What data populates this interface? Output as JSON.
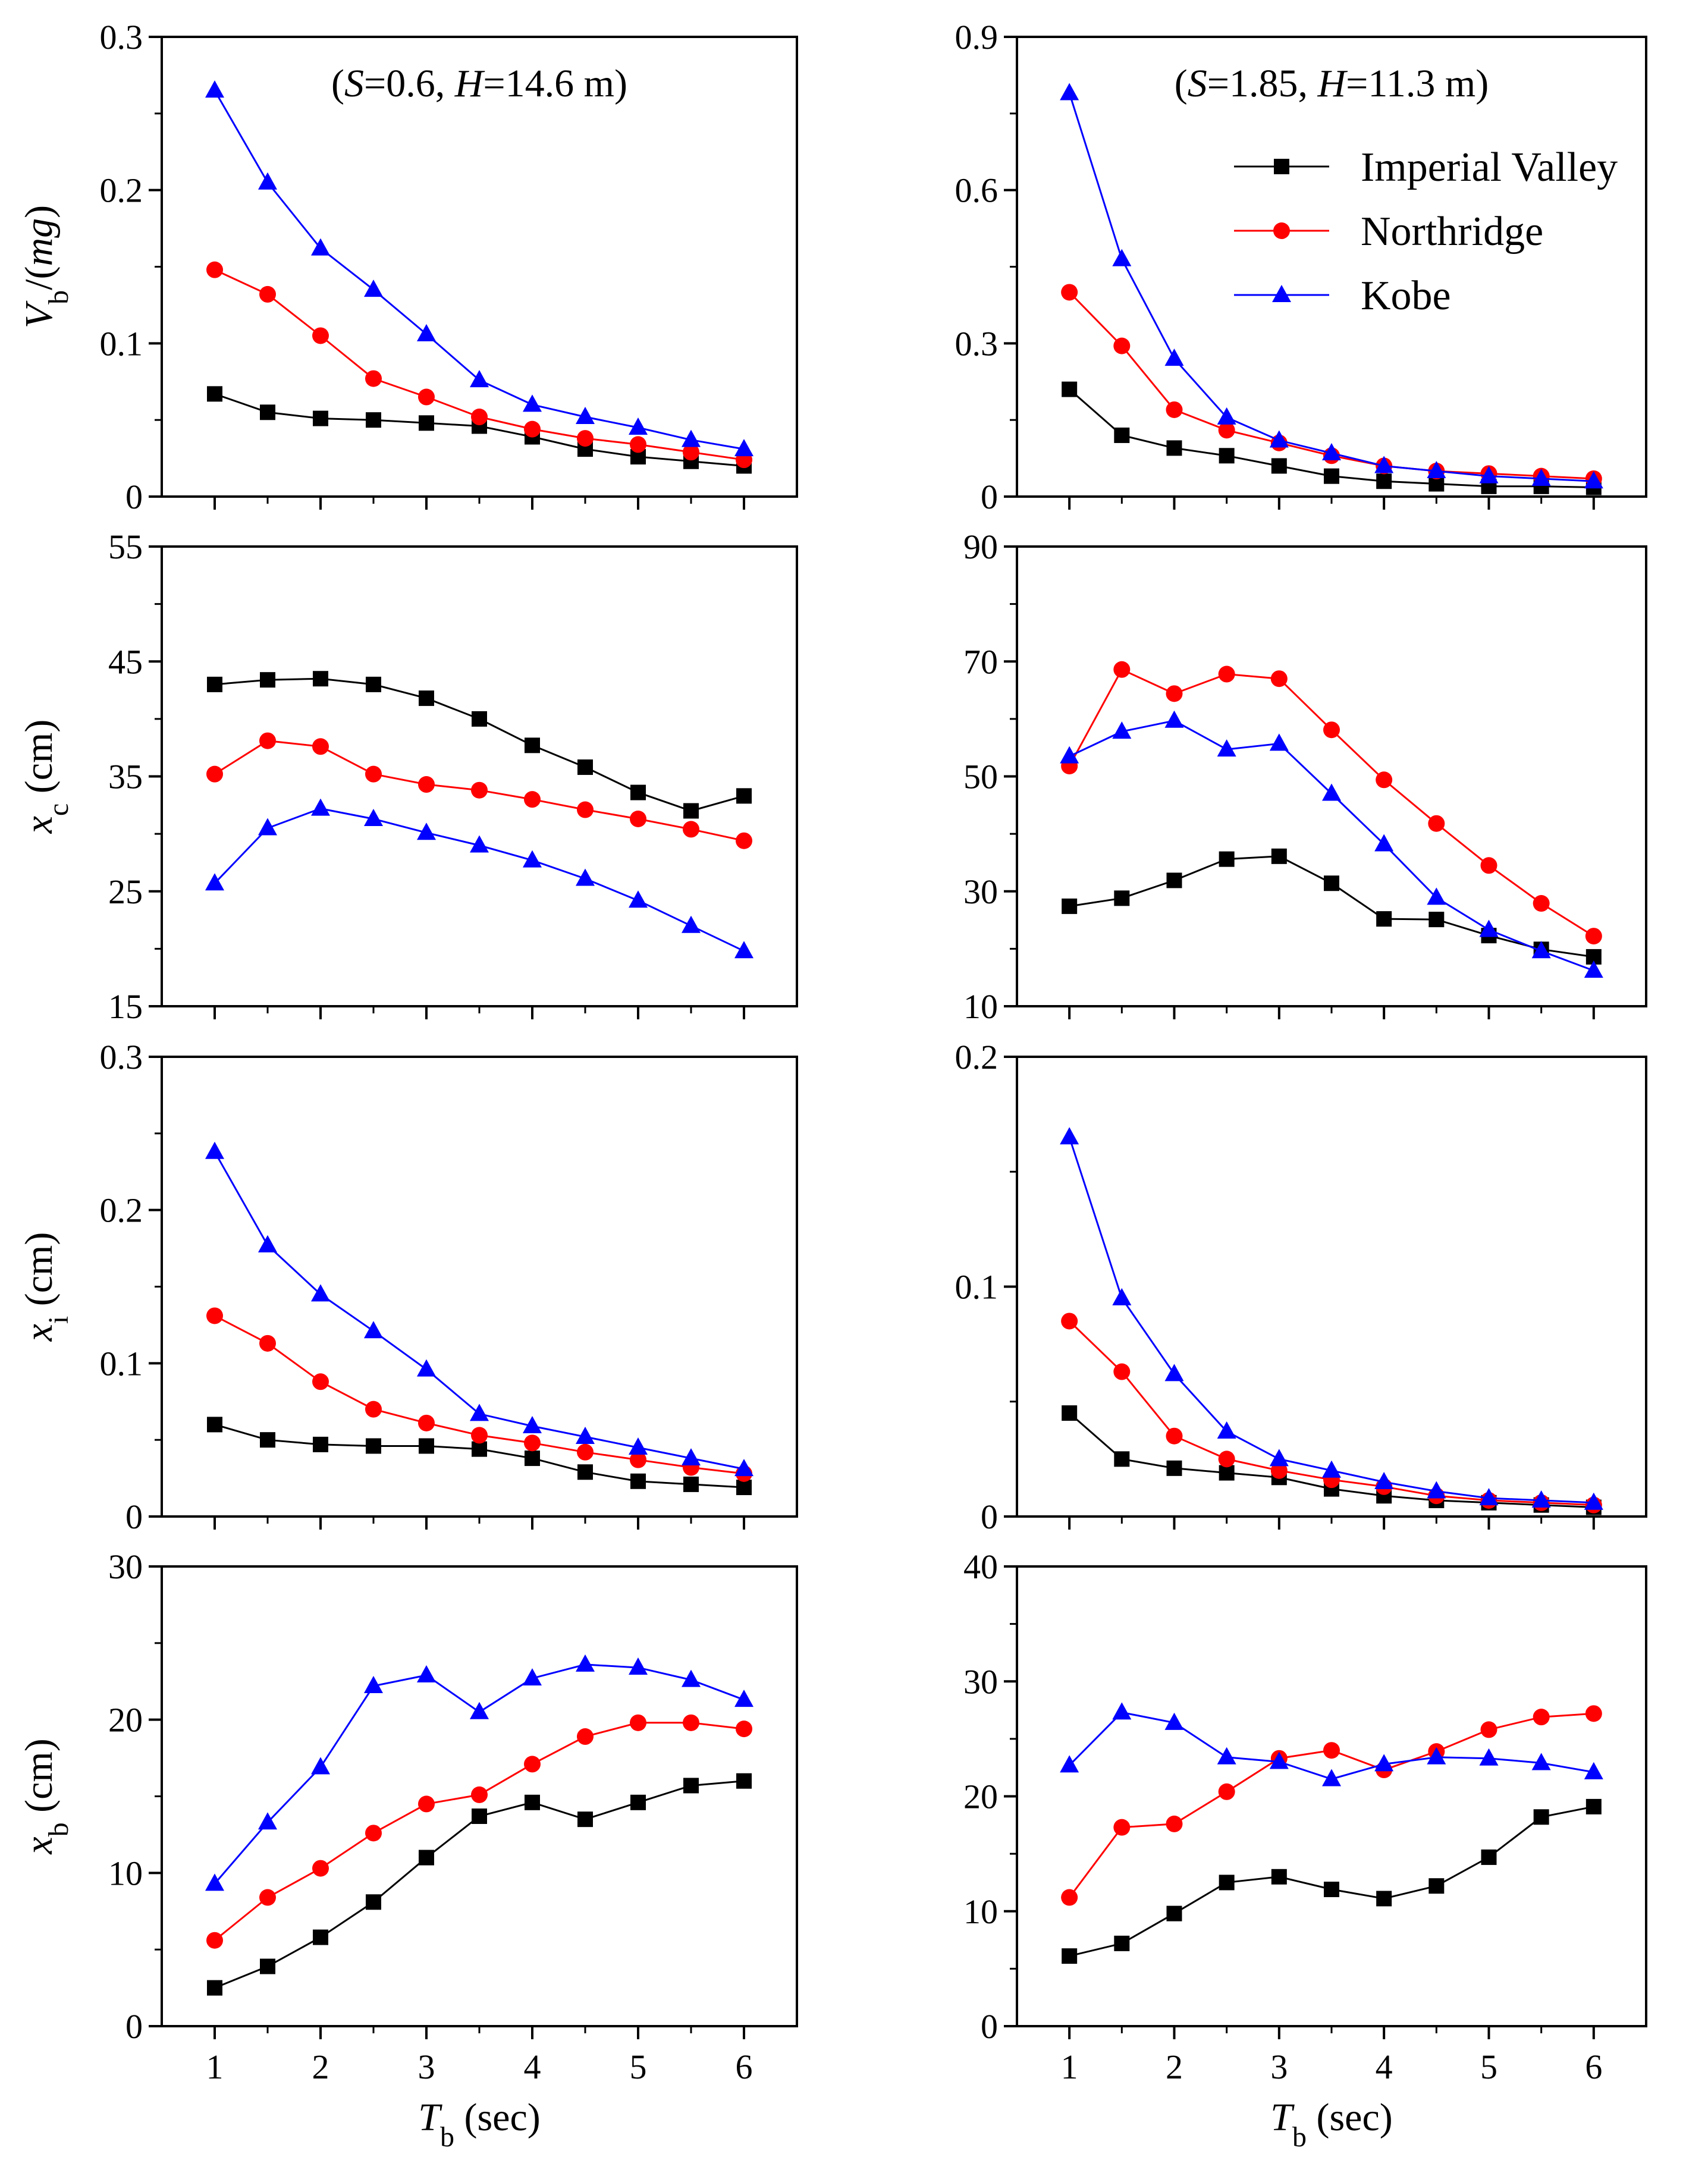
{
  "figure_colors": {
    "Imperial Valley": "#000000",
    "Northridge": "#ff0000",
    "Kobe": "#0000ff"
  },
  "figure_markers": {
    "Imperial Valley": "square",
    "Northridge": "circle",
    "Kobe": "triangle"
  },
  "legend": {
    "entries": [
      "Imperial Valley",
      "Northridge",
      "Kobe"
    ],
    "placement": "top-right of right-top panel"
  },
  "chart_data": [
    {
      "type": "line",
      "panel": "left-1",
      "title": "(S=0.6, H=14.6 m)",
      "title_parts": [
        "(",
        "S",
        "=0.6, ",
        "H",
        "=14.6 m)"
      ],
      "ylabel": "Vb/(mg)",
      "ylabel_parts": [
        "V",
        "b",
        "/(",
        "mg",
        ")"
      ],
      "xlabel": "",
      "xlim": [
        0.5,
        6.5
      ],
      "ylim": [
        0,
        0.3
      ],
      "xticks": [
        1,
        2,
        3,
        4,
        5,
        6
      ],
      "xtick_labels": [
        "",
        "",
        "",
        "",
        "",
        ""
      ],
      "yticks": [
        0,
        0.1,
        0.2,
        0.3
      ],
      "ytick_labels": [
        "0",
        "0.1",
        "0.2",
        "0.3"
      ],
      "x": [
        1,
        1.5,
        2,
        2.5,
        3,
        3.5,
        4,
        4.5,
        5,
        5.5,
        6
      ],
      "series": [
        {
          "name": "Imperial Valley",
          "values": [
            0.067,
            0.055,
            0.051,
            0.05,
            0.048,
            0.046,
            0.039,
            0.031,
            0.026,
            0.023,
            0.02
          ]
        },
        {
          "name": "Northridge",
          "values": [
            0.148,
            0.132,
            0.105,
            0.077,
            0.065,
            0.052,
            0.044,
            0.038,
            0.034,
            0.029,
            0.024
          ]
        },
        {
          "name": "Kobe",
          "values": [
            0.265,
            0.205,
            0.162,
            0.135,
            0.106,
            0.076,
            0.06,
            0.052,
            0.045,
            0.037,
            0.031
          ]
        }
      ]
    },
    {
      "type": "line",
      "panel": "right-1",
      "title": "(S=1.85, H=11.3 m)",
      "title_parts": [
        "(",
        "S",
        "=1.85, ",
        "H",
        "=11.3 m)"
      ],
      "ylabel": "",
      "ylabel_parts": [],
      "xlabel": "",
      "xlim": [
        0.5,
        6.5
      ],
      "ylim": [
        0,
        0.9
      ],
      "xticks": [
        1,
        2,
        3,
        4,
        5,
        6
      ],
      "xtick_labels": [
        "",
        "",
        "",
        "",
        "",
        ""
      ],
      "yticks": [
        0,
        0.3,
        0.6,
        0.9
      ],
      "ytick_labels": [
        "0",
        "0.3",
        "0.6",
        "0.9"
      ],
      "x": [
        1,
        1.5,
        2,
        2.5,
        3,
        3.5,
        4,
        4.5,
        5,
        5.5,
        6
      ],
      "series": [
        {
          "name": "Imperial Valley",
          "values": [
            0.21,
            0.12,
            0.095,
            0.08,
            0.06,
            0.04,
            0.03,
            0.025,
            0.02,
            0.02,
            0.018
          ]
        },
        {
          "name": "Northridge",
          "values": [
            0.4,
            0.295,
            0.17,
            0.13,
            0.105,
            0.08,
            0.06,
            0.05,
            0.045,
            0.04,
            0.035
          ]
        },
        {
          "name": "Kobe",
          "values": [
            0.79,
            0.465,
            0.27,
            0.155,
            0.11,
            0.085,
            0.06,
            0.05,
            0.04,
            0.035,
            0.03
          ]
        }
      ]
    },
    {
      "type": "line",
      "panel": "left-2",
      "title": "",
      "title_parts": [],
      "ylabel": "xc (cm)",
      "ylabel_parts": [
        "x",
        "c",
        " (cm)"
      ],
      "xlabel": "",
      "xlim": [
        0.5,
        6.5
      ],
      "ylim": [
        15,
        55
      ],
      "xticks": [
        1,
        2,
        3,
        4,
        5,
        6
      ],
      "xtick_labels": [
        "",
        "",
        "",
        "",
        "",
        ""
      ],
      "yticks": [
        15,
        25,
        35,
        45,
        55
      ],
      "ytick_labels": [
        "15",
        "25",
        "35",
        "45",
        "55"
      ],
      "x": [
        1,
        1.5,
        2,
        2.5,
        3,
        3.5,
        4,
        4.5,
        5,
        5.5,
        6
      ],
      "series": [
        {
          "name": "Imperial Valley",
          "values": [
            43.0,
            43.4,
            43.5,
            43.0,
            41.8,
            40.0,
            37.7,
            35.8,
            33.6,
            32.0,
            33.3
          ]
        },
        {
          "name": "Northridge",
          "values": [
            35.2,
            38.1,
            37.6,
            35.2,
            34.3,
            33.8,
            33.0,
            32.1,
            31.3,
            30.4,
            29.4
          ]
        },
        {
          "name": "Kobe",
          "values": [
            25.7,
            30.5,
            32.2,
            31.3,
            30.1,
            29.0,
            27.7,
            26.1,
            24.2,
            22.0,
            19.8
          ]
        }
      ]
    },
    {
      "type": "line",
      "panel": "right-2",
      "title": "",
      "title_parts": [],
      "ylabel": "",
      "ylabel_parts": [],
      "xlabel": "",
      "xlim": [
        0.5,
        6.5
      ],
      "ylim": [
        10,
        90
      ],
      "xticks": [
        1,
        2,
        3,
        4,
        5,
        6
      ],
      "xtick_labels": [
        "",
        "",
        "",
        "",
        "",
        ""
      ],
      "yticks": [
        10,
        30,
        50,
        70,
        90
      ],
      "ytick_labels": [
        "10",
        "30",
        "50",
        "70",
        "90"
      ],
      "x": [
        1,
        1.5,
        2,
        2.5,
        3,
        3.5,
        4,
        4.5,
        5,
        5.5,
        6
      ],
      "series": [
        {
          "name": "Imperial Valley",
          "values": [
            27.4,
            28.8,
            31.9,
            35.6,
            36.1,
            31.4,
            25.2,
            25.1,
            22.3,
            19.9,
            18.6
          ]
        },
        {
          "name": "Northridge",
          "values": [
            51.8,
            68.6,
            64.4,
            67.8,
            67.0,
            58.1,
            49.4,
            41.8,
            34.5,
            27.9,
            22.2
          ]
        },
        {
          "name": "Kobe",
          "values": [
            53.5,
            57.8,
            59.7,
            54.7,
            55.7,
            47.0,
            38.2,
            28.9,
            23.3,
            19.6,
            16.2
          ]
        }
      ]
    },
    {
      "type": "line",
      "panel": "left-3",
      "title": "",
      "title_parts": [],
      "ylabel": "xi (cm)",
      "ylabel_parts": [
        "x",
        "i",
        " (cm)"
      ],
      "xlabel": "",
      "xlim": [
        0.5,
        6.5
      ],
      "ylim": [
        0,
        0.3
      ],
      "xticks": [
        1,
        2,
        3,
        4,
        5,
        6
      ],
      "xtick_labels": [
        "",
        "",
        "",
        "",
        "",
        ""
      ],
      "yticks": [
        0,
        0.1,
        0.2,
        0.3
      ],
      "ytick_labels": [
        "0",
        "0.1",
        "0.2",
        "0.3"
      ],
      "x": [
        1,
        1.5,
        2,
        2.5,
        3,
        3.5,
        4,
        4.5,
        5,
        5.5,
        6
      ],
      "series": [
        {
          "name": "Imperial Valley",
          "values": [
            0.06,
            0.05,
            0.047,
            0.046,
            0.046,
            0.044,
            0.038,
            0.029,
            0.023,
            0.021,
            0.019
          ]
        },
        {
          "name": "Northridge",
          "values": [
            0.131,
            0.113,
            0.088,
            0.07,
            0.061,
            0.053,
            0.048,
            0.042,
            0.037,
            0.032,
            0.028
          ]
        },
        {
          "name": "Kobe",
          "values": [
            0.238,
            0.177,
            0.145,
            0.121,
            0.096,
            0.067,
            0.059,
            0.052,
            0.045,
            0.038,
            0.031
          ]
        }
      ]
    },
    {
      "type": "line",
      "panel": "right-3",
      "title": "",
      "title_parts": [],
      "ylabel": "",
      "ylabel_parts": [],
      "xlabel": "",
      "xlim": [
        0.5,
        6.5
      ],
      "ylim": [
        0,
        0.2
      ],
      "xticks": [
        1,
        2,
        3,
        4,
        5,
        6
      ],
      "xtick_labels": [
        "",
        "",
        "",
        "",
        "",
        ""
      ],
      "yticks": [
        0,
        0.1,
        0.2
      ],
      "ytick_labels": [
        "0",
        "0.1",
        "0.2"
      ],
      "x": [
        1,
        1.5,
        2,
        2.5,
        3,
        3.5,
        4,
        4.5,
        5,
        5.5,
        6
      ],
      "series": [
        {
          "name": "Imperial Valley",
          "values": [
            0.045,
            0.025,
            0.021,
            0.019,
            0.017,
            0.012,
            0.009,
            0.007,
            0.006,
            0.005,
            0.004
          ]
        },
        {
          "name": "Northridge",
          "values": [
            0.085,
            0.063,
            0.035,
            0.025,
            0.02,
            0.016,
            0.013,
            0.009,
            0.007,
            0.006,
            0.005
          ]
        },
        {
          "name": "Kobe",
          "values": [
            0.165,
            0.095,
            0.062,
            0.037,
            0.025,
            0.02,
            0.015,
            0.011,
            0.008,
            0.007,
            0.006
          ]
        }
      ]
    },
    {
      "type": "line",
      "panel": "left-4",
      "title": "",
      "title_parts": [],
      "ylabel": "xb (cm)",
      "ylabel_parts": [
        "x",
        "b",
        " (cm)"
      ],
      "xlabel": "Tb (sec)",
      "xlabel_parts": [
        "T",
        "b",
        " (sec)"
      ],
      "xlim": [
        0.5,
        6.5
      ],
      "ylim": [
        0,
        30
      ],
      "xticks": [
        1,
        2,
        3,
        4,
        5,
        6
      ],
      "xtick_labels": [
        "1",
        "2",
        "3",
        "4",
        "5",
        "6"
      ],
      "yticks": [
        0,
        10,
        20,
        30
      ],
      "ytick_labels": [
        "0",
        "10",
        "20",
        "30"
      ],
      "x": [
        1,
        1.5,
        2,
        2.5,
        3,
        3.5,
        4,
        4.5,
        5,
        5.5,
        6
      ],
      "series": [
        {
          "name": "Imperial Valley",
          "values": [
            2.5,
            3.9,
            5.8,
            8.1,
            11.0,
            13.7,
            14.6,
            13.5,
            14.6,
            15.7,
            16.0
          ]
        },
        {
          "name": "Northridge",
          "values": [
            5.6,
            8.4,
            10.3,
            12.6,
            14.5,
            15.1,
            17.1,
            18.9,
            19.8,
            19.8,
            19.4
          ]
        },
        {
          "name": "Kobe",
          "values": [
            9.3,
            13.3,
            16.9,
            22.2,
            22.9,
            20.5,
            22.7,
            23.6,
            23.4,
            22.6,
            21.3
          ]
        }
      ]
    },
    {
      "type": "line",
      "panel": "right-4",
      "title": "",
      "title_parts": [],
      "ylabel": "",
      "ylabel_parts": [],
      "xlabel": "Tb (sec)",
      "xlabel_parts": [
        "T",
        "b",
        " (sec)"
      ],
      "xlim": [
        0.5,
        6.5
      ],
      "ylim": [
        0,
        40
      ],
      "xticks": [
        1,
        2,
        3,
        4,
        5,
        6
      ],
      "xtick_labels": [
        "1",
        "2",
        "3",
        "4",
        "5",
        "6"
      ],
      "yticks": [
        0,
        10,
        20,
        30,
        40
      ],
      "ytick_labels": [
        "0",
        "10",
        "20",
        "30",
        "40"
      ],
      "x": [
        1,
        1.5,
        2,
        2.5,
        3,
        3.5,
        4,
        4.5,
        5,
        5.5,
        6
      ],
      "series": [
        {
          "name": "Imperial Valley",
          "values": [
            6.1,
            7.2,
            9.8,
            12.5,
            13.0,
            11.9,
            11.1,
            12.2,
            14.7,
            18.2,
            19.1
          ]
        },
        {
          "name": "Northridge",
          "values": [
            11.2,
            17.3,
            17.6,
            20.4,
            23.3,
            24.0,
            22.3,
            23.9,
            25.8,
            26.9,
            27.2
          ]
        },
        {
          "name": "Kobe",
          "values": [
            22.7,
            27.3,
            26.4,
            23.4,
            23.0,
            21.5,
            22.8,
            23.4,
            23.3,
            22.9,
            22.1
          ]
        }
      ]
    }
  ]
}
